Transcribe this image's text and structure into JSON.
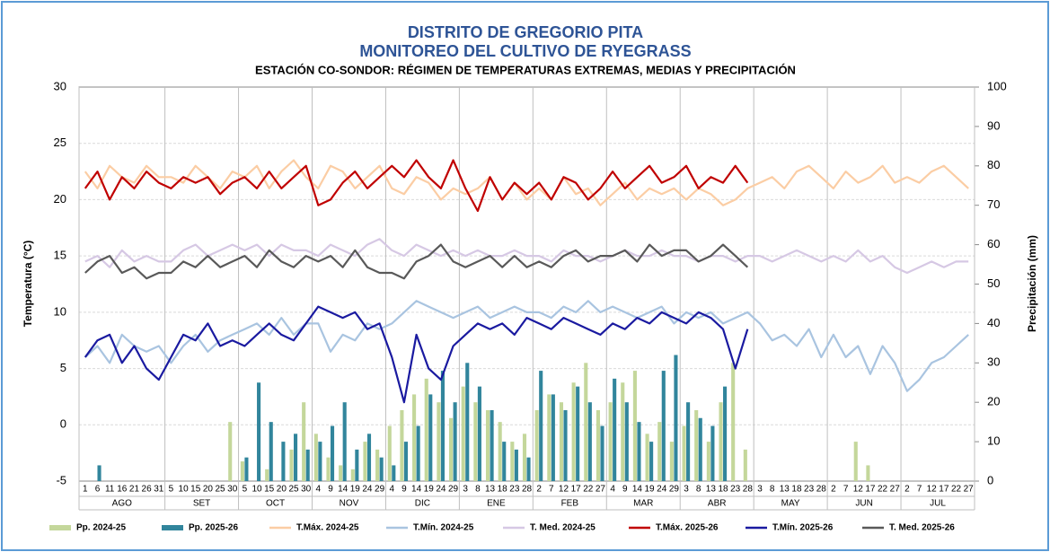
{
  "chart_data": {
    "type": "combo",
    "title": "DISTRITO DE GREGORIO PITA",
    "subtitle": "MONITOREO DEL CULTIVO DE RYEGRASS",
    "caption": "ESTACIÓN CO-SONDOR: RÉGIMEN DE TEMPERATURAS EXTREMAS, MEDIAS Y PRECIPITACIÓN",
    "y_label": "Temperatura (°C)",
    "y2_label": "Precipitación (mm)",
    "ylim": [
      -5,
      30
    ],
    "yticks": [
      -5,
      0,
      5,
      10,
      15,
      20,
      25,
      30
    ],
    "y2lim": [
      0,
      100
    ],
    "y2ticks": [
      0,
      10,
      20,
      30,
      40,
      50,
      60,
      70,
      80,
      90,
      100
    ],
    "grid": true,
    "categories": [
      "1",
      "6",
      "11",
      "16",
      "21",
      "26",
      "31",
      "5",
      "10",
      "15",
      "20",
      "25",
      "30",
      "5",
      "10",
      "15",
      "20",
      "25",
      "30",
      "4",
      "9",
      "14",
      "19",
      "24",
      "29",
      "4",
      "9",
      "14",
      "19",
      "24",
      "29",
      "3",
      "8",
      "13",
      "18",
      "23",
      "28",
      "2",
      "7",
      "12",
      "17",
      "22",
      "27",
      "4",
      "9",
      "14",
      "19",
      "24",
      "29",
      "3",
      "8",
      "13",
      "18",
      "23",
      "28",
      "3",
      "8",
      "13",
      "18",
      "23",
      "28",
      "2",
      "7",
      "12",
      "17",
      "22",
      "27",
      "2",
      "7",
      "12",
      "17",
      "22",
      "27"
    ],
    "category_groups": [
      {
        "label": "AGO",
        "span": 7
      },
      {
        "label": "SET",
        "span": 6
      },
      {
        "label": "OCT",
        "span": 6
      },
      {
        "label": "NOV",
        "span": 6
      },
      {
        "label": "DIC",
        "span": 6
      },
      {
        "label": "ENE",
        "span": 6
      },
      {
        "label": "FEB",
        "span": 6
      },
      {
        "label": "MAR",
        "span": 6
      },
      {
        "label": "ABR",
        "span": 6
      },
      {
        "label": "MAY",
        "span": 6
      },
      {
        "label": "JUN",
        "span": 6
      },
      {
        "label": "JUL",
        "span": 6
      }
    ],
    "series": [
      {
        "name": "Pp. 2024-25",
        "kind": "bar",
        "axis": "y2",
        "color": "#c4d79b",
        "values": [
          0,
          0,
          0,
          0,
          0,
          0,
          0,
          0,
          0,
          0,
          0,
          0,
          15,
          5,
          0,
          3,
          0,
          8,
          20,
          12,
          6,
          4,
          3,
          10,
          8,
          14,
          18,
          22,
          26,
          20,
          16,
          24,
          20,
          18,
          15,
          10,
          12,
          18,
          22,
          20,
          25,
          30,
          18,
          20,
          25,
          28,
          12,
          15,
          10,
          14,
          18,
          10,
          20,
          30,
          8,
          0,
          0,
          0,
          0,
          0,
          0,
          0,
          0,
          10,
          4,
          0,
          0,
          0,
          0,
          0,
          0,
          0,
          0
        ]
      },
      {
        "name": "Pp. 2025-26",
        "kind": "bar",
        "axis": "y2",
        "color": "#31859c",
        "values": [
          0,
          4,
          0,
          0,
          0,
          0,
          0,
          0,
          0,
          0,
          0,
          0,
          0,
          6,
          25,
          15,
          10,
          12,
          8,
          10,
          14,
          20,
          8,
          12,
          6,
          4,
          10,
          14,
          22,
          28,
          20,
          30,
          24,
          18,
          10,
          8,
          6,
          28,
          22,
          18,
          24,
          20,
          14,
          26,
          20,
          15,
          10,
          28,
          32,
          20,
          16,
          14,
          24,
          0,
          0,
          0,
          0,
          0,
          0,
          0,
          0,
          0,
          0,
          0,
          0,
          0,
          0,
          0,
          0,
          0,
          0,
          0,
          0
        ]
      },
      {
        "name": "T.Máx. 2024-25",
        "kind": "line",
        "color": "#fbcda4",
        "values": [
          22.5,
          21,
          23,
          22,
          21.5,
          23,
          22,
          22,
          21.5,
          23,
          22,
          21,
          22.5,
          22,
          23,
          21,
          22.5,
          23.5,
          22,
          21,
          23,
          22.5,
          21,
          22,
          23,
          21,
          20.5,
          22,
          21.5,
          20,
          21,
          20.5,
          21,
          22,
          20,
          21.5,
          20,
          21,
          20,
          22,
          20.5,
          21,
          19.5,
          20.5,
          21.5,
          20,
          21,
          20.5,
          21,
          20,
          21,
          20.5,
          19.5,
          20,
          21,
          21.5,
          22,
          21,
          22.5,
          23,
          22,
          21,
          22.5,
          21.5,
          22,
          23,
          21.5,
          22,
          21.5,
          22.5,
          23,
          22,
          21
        ]
      },
      {
        "name": "T.Mín. 2024-25",
        "kind": "line",
        "color": "#a9c4e0",
        "values": [
          6,
          7,
          5.5,
          8,
          7,
          6.5,
          7,
          5.5,
          7,
          8,
          6.5,
          7.5,
          8,
          8.5,
          9,
          8,
          9.5,
          8,
          9,
          9,
          6.5,
          8,
          7.5,
          9,
          8.5,
          9,
          10,
          11,
          10.5,
          10,
          9.5,
          10,
          10.5,
          9.5,
          10,
          10.5,
          10,
          10,
          9.5,
          10.5,
          10,
          11,
          10,
          10.5,
          10,
          9.5,
          10,
          10.5,
          9,
          10,
          9.5,
          10,
          9,
          9.5,
          10,
          9,
          7.5,
          8,
          7,
          8.5,
          6,
          8,
          6,
          7,
          4.5,
          7,
          5.5,
          3,
          4,
          5.5,
          6,
          7,
          8
        ]
      },
      {
        "name": "T. Med. 2024-25",
        "kind": "line",
        "color": "#d6c8e4",
        "values": [
          14.5,
          15,
          14,
          15.5,
          14.5,
          15,
          14.5,
          14.5,
          15.5,
          16,
          15,
          15.5,
          16,
          15.5,
          16,
          15,
          16,
          15.5,
          15.5,
          15,
          16,
          15.5,
          15,
          16,
          16.5,
          15.5,
          15,
          16,
          15.5,
          15,
          15.5,
          15,
          15.5,
          15,
          15,
          15.5,
          15,
          15,
          14.5,
          15.5,
          15,
          15,
          14.5,
          15,
          15.5,
          15,
          15,
          15.5,
          15,
          15,
          14.5,
          15,
          15,
          14.5,
          15,
          15,
          14.5,
          15,
          15.5,
          15,
          14.5,
          15,
          14.5,
          15.5,
          14.5,
          15,
          14,
          13.5,
          14,
          14.5,
          14,
          14.5,
          14.5
        ]
      },
      {
        "name": "T.Máx. 2025-26",
        "kind": "line",
        "color": "#c00000",
        "values": [
          21,
          22.5,
          20,
          22,
          21,
          22.5,
          21.5,
          21,
          22,
          21.5,
          22,
          20.5,
          21.5,
          22,
          21,
          22.5,
          21,
          22,
          23,
          19.5,
          20,
          21.5,
          22.5,
          21,
          22,
          23,
          22,
          23.5,
          22,
          21,
          23.5,
          21,
          19,
          22,
          20,
          21.5,
          20.5,
          21.5,
          20,
          22,
          21.5,
          20,
          21,
          22.5,
          21,
          22,
          23,
          21.5,
          22,
          23,
          21,
          22,
          21.5,
          23,
          21.5,
          null,
          null,
          null,
          null,
          null,
          null,
          null,
          null,
          null,
          null,
          null,
          null,
          null,
          null,
          null,
          null,
          null,
          null
        ]
      },
      {
        "name": "T.Mín. 2025-26",
        "kind": "line",
        "color": "#1a1aa0",
        "values": [
          6,
          7.5,
          8,
          5.5,
          7,
          5,
          4,
          6,
          8,
          7.5,
          9,
          7,
          7.5,
          7,
          8,
          9,
          8,
          7.5,
          9,
          10.5,
          10,
          9.5,
          10,
          8.5,
          9,
          6,
          2,
          8,
          5,
          4,
          7,
          8,
          9,
          8.5,
          9,
          8,
          9.5,
          9,
          8.5,
          9.5,
          9,
          8.5,
          8,
          9,
          8.5,
          9.5,
          9,
          10,
          9.5,
          9,
          10,
          9.5,
          8.5,
          5,
          8.5,
          null,
          null,
          null,
          null,
          null,
          null,
          null,
          null,
          null,
          null,
          null,
          null,
          null,
          null,
          null,
          null,
          null,
          null
        ]
      },
      {
        "name": "T. Med. 2025-26",
        "kind": "line",
        "color": "#595959",
        "values": [
          13.5,
          14.5,
          15,
          13.5,
          14,
          13,
          13.5,
          13.5,
          14.5,
          14,
          15,
          14,
          14.5,
          15,
          14,
          15.5,
          14.5,
          14,
          15,
          14.5,
          15,
          14,
          15.5,
          14,
          13.5,
          13.5,
          13,
          14.5,
          15,
          16,
          14.5,
          14,
          14.5,
          15,
          14,
          15,
          14,
          14.5,
          14,
          15,
          15.5,
          14.5,
          15,
          15,
          15.5,
          14.5,
          16,
          15,
          15.5,
          15.5,
          14.5,
          15,
          16,
          15,
          14,
          null,
          null,
          null,
          null,
          null,
          null,
          null,
          null,
          null,
          null,
          null,
          null,
          null,
          null,
          null,
          null,
          null,
          null
        ]
      }
    ]
  }
}
